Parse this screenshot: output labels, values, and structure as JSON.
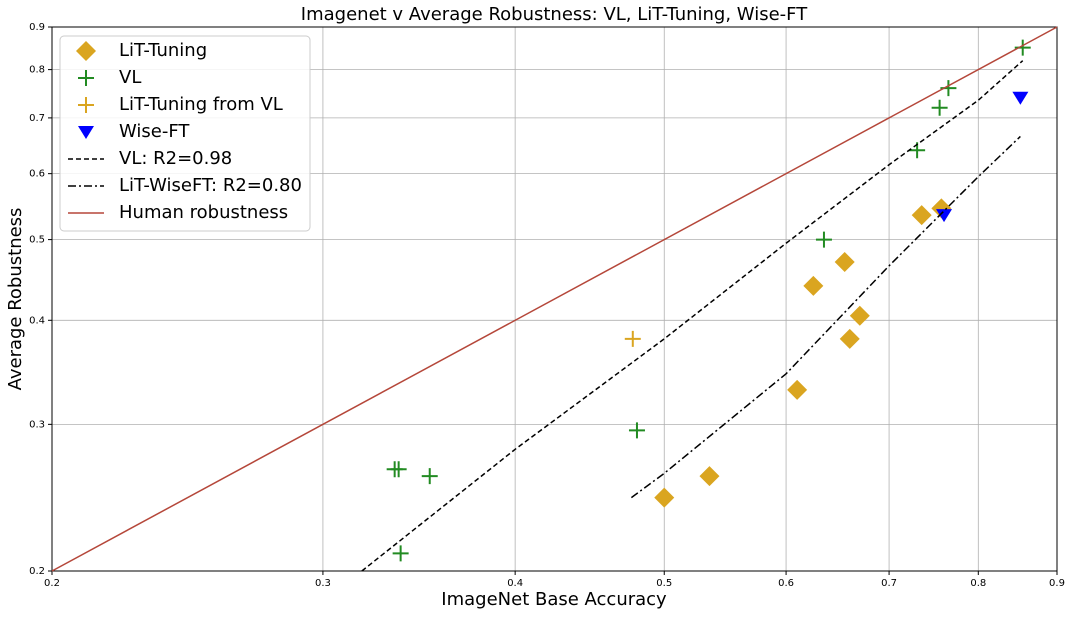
{
  "chart_data": {
    "type": "scatter",
    "title": "Imagenet v Average Robustness: VL, LiT-Tuning, Wise-FT",
    "x_label": "ImageNet Base Accuracy",
    "y_label": "Average Robustness",
    "xscale": "log",
    "yscale": "log",
    "grid": true,
    "legend": "upper left",
    "xlim": [
      0.2,
      0.9
    ],
    "ylim": [
      0.2,
      0.9
    ],
    "xticks": [
      0.2,
      0.3,
      0.4,
      0.5,
      0.6,
      0.7,
      0.8,
      0.9
    ],
    "yticks": [
      0.2,
      0.3,
      0.4,
      0.5,
      0.6,
      0.7,
      0.8,
      0.9
    ],
    "series": [
      {
        "name": "LiT-Tuning",
        "color": "#daa520",
        "marker": "diamond",
        "x": [
          0.5,
          0.535,
          0.61,
          0.625,
          0.655,
          0.66,
          0.67,
          0.735,
          0.757
        ],
        "values": [
          0.245,
          0.26,
          0.33,
          0.44,
          0.47,
          0.38,
          0.405,
          0.535,
          0.545
        ]
      },
      {
        "name": "VL",
        "color": "#228b22",
        "marker": "plus",
        "x": [
          0.855,
          0.765,
          0.755,
          0.73,
          0.635,
          0.48,
          0.334,
          0.336,
          0.352,
          0.337
        ],
        "values": [
          0.85,
          0.76,
          0.72,
          0.64,
          0.5,
          0.295,
          0.265,
          0.265,
          0.26,
          0.21
        ]
      },
      {
        "name": "LiT-Tuning from VL",
        "color": "#daa520",
        "marker": "plus",
        "x": [
          0.477
        ],
        "values": [
          0.38
        ]
      },
      {
        "name": "Wise-FT",
        "color": "#0000ff",
        "marker": "triangle-down",
        "x": [
          0.852,
          0.76
        ],
        "values": [
          0.74,
          0.535
        ]
      },
      {
        "name": "VL: R2=0.98",
        "color": "#000000",
        "line": "dashed",
        "x": [
          0.318,
          0.4,
          0.5,
          0.6,
          0.7,
          0.8,
          0.855
        ],
        "values": [
          0.2,
          0.28,
          0.38,
          0.495,
          0.615,
          0.735,
          0.82
        ]
      },
      {
        "name": "LiT-WiseFT: R2=0.80",
        "color": "#000000",
        "line": "dashdot",
        "x": [
          0.476,
          0.5,
          0.6,
          0.7,
          0.8,
          0.852
        ],
        "values": [
          0.245,
          0.262,
          0.345,
          0.465,
          0.595,
          0.665
        ]
      },
      {
        "name": "Human robustness",
        "color": "#b5473a",
        "line": "solid",
        "x": [
          0.2,
          0.9
        ],
        "values": [
          0.2,
          0.9
        ]
      }
    ]
  }
}
